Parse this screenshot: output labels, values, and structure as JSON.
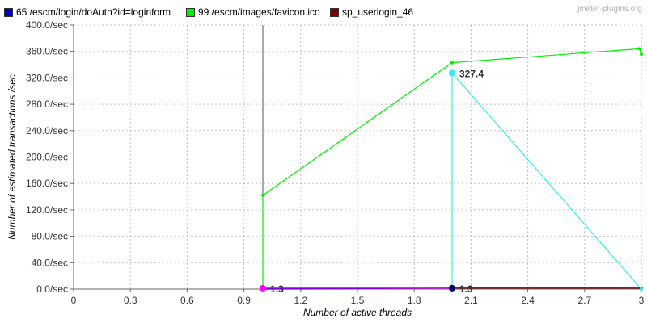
{
  "watermark": "jmeter-plugins.org",
  "chart_data": {
    "type": "line",
    "xlabel": "Number of active threads",
    "ylabel": "Number of estimated transactions /sec",
    "xlim": [
      0,
      3
    ],
    "ylim": [
      0,
      400
    ],
    "x_ticks": [
      "0",
      "0.3",
      "0.6",
      "0.9",
      "1.2",
      "1.5",
      "1.8",
      "2.1",
      "2.4",
      "2.7",
      "3"
    ],
    "y_ticks": [
      "0.0/sec",
      "40.0/sec",
      "80.0/sec",
      "120.0/sec",
      "160.0/sec",
      "200.0/sec",
      "240.0/sec",
      "280.0/sec",
      "320.0/sec",
      "360.0/sec",
      "400.0/sec"
    ],
    "grid": true,
    "legend_position": "top-left",
    "series": [
      {
        "name": "65 /escm/login/doAuth?id=loginform",
        "color": "#0000cc",
        "points": [
          [
            1,
            0
          ],
          [
            2,
            1.3
          ],
          [
            3,
            1.3
          ]
        ]
      },
      {
        "name": "99 /escm/images/favicon.ico",
        "color": "#00ee00",
        "points": [
          [
            1,
            0
          ],
          [
            1,
            142
          ],
          [
            2,
            343
          ],
          [
            2.99,
            364
          ],
          [
            3,
            356
          ]
        ]
      },
      {
        "name": "sp_userlogin_46",
        "color": "#800000",
        "points": [
          [
            1,
            1.3
          ],
          [
            2,
            1.3
          ],
          [
            3,
            1.3
          ]
        ]
      },
      {
        "name": "",
        "color": "#33eeee",
        "points": [
          [
            2,
            0
          ],
          [
            2,
            327.4
          ],
          [
            3,
            0
          ]
        ]
      },
      {
        "name": "",
        "color": "#ff00ff",
        "points": [
          [
            1,
            1.3
          ],
          [
            2,
            1.3
          ]
        ]
      }
    ],
    "vertical_marker_x": 1,
    "highlight_points": [
      {
        "x": 1,
        "y": 1.3,
        "color": "#ff00ff",
        "label": "1.3"
      },
      {
        "x": 2,
        "y": 1.3,
        "color": "#000066",
        "label": "1.3"
      },
      {
        "x": 2,
        "y": 327.4,
        "color": "#33eeee",
        "label": "327.4"
      }
    ]
  }
}
